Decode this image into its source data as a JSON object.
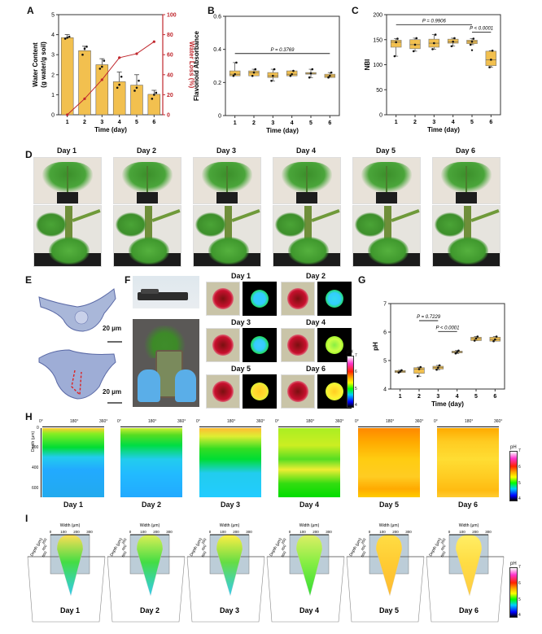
{
  "panels": {
    "A": "A",
    "B": "B",
    "C": "C",
    "D": "D",
    "E": "E",
    "F": "F",
    "G": "G",
    "H": "H",
    "I": "I"
  },
  "days": [
    "Day 1",
    "Day 2",
    "Day 3",
    "Day 4",
    "Day 5",
    "Day 6"
  ],
  "colors": {
    "bar": "#f2c04f",
    "bar_edge": "#555555",
    "loss_line": "#c0272d",
    "box": "#f2c04f"
  },
  "chart_data": [
    {
      "id": "A",
      "type": "bar",
      "title": "",
      "categories": [
        "1",
        "2",
        "3",
        "4",
        "5",
        "6"
      ],
      "xlabel": "Time (day)",
      "ylabel": "Water Content (g water/g soil)",
      "ylabel_lines": [
        "Water Content",
        "(g water/g soil)"
      ],
      "ylim": [
        0,
        5
      ],
      "yticks": [
        0,
        1,
        2,
        3,
        4,
        5
      ],
      "values": [
        3.85,
        3.2,
        2.5,
        1.65,
        1.48,
        1.02
      ],
      "errors": [
        0.15,
        0.22,
        0.3,
        0.48,
        0.52,
        0.2
      ],
      "points": [
        [
          3.8,
          3.85,
          3.9
        ],
        [
          3.0,
          3.3,
          3.4
        ],
        [
          2.3,
          2.4,
          2.7
        ],
        [
          1.35,
          1.5,
          1.9
        ],
        [
          1.2,
          1.35,
          1.7
        ],
        [
          0.8,
          1.0,
          1.1
        ]
      ],
      "secondary": {
        "type": "line",
        "ylabel": "Water Loss (%)",
        "ylim": [
          0,
          100
        ],
        "yticks": [
          0,
          20,
          40,
          60,
          80,
          100
        ],
        "values": [
          0,
          16,
          35,
          57,
          61,
          73
        ]
      }
    },
    {
      "id": "B",
      "type": "box",
      "categories": [
        "1",
        "2",
        "3",
        "4",
        "5",
        "6"
      ],
      "xlabel": "Time (day)",
      "ylabel": "Flavonoid Absorbance",
      "ylim": [
        0,
        0.6
      ],
      "yticks": [
        "0",
        "0.2",
        "0.4",
        "0.6"
      ],
      "ytick_values": [
        0,
        0.2,
        0.4,
        0.6
      ],
      "boxes": [
        {
          "min": 0.24,
          "q1": 0.24,
          "median": 0.25,
          "q3": 0.27,
          "max": 0.32
        },
        {
          "min": 0.24,
          "q1": 0.24,
          "median": 0.26,
          "q3": 0.27,
          "max": 0.28
        },
        {
          "min": 0.21,
          "q1": 0.23,
          "median": 0.24,
          "q3": 0.26,
          "max": 0.28
        },
        {
          "min": 0.24,
          "q1": 0.24,
          "median": 0.25,
          "q3": 0.27,
          "max": 0.27
        },
        {
          "min": 0.23,
          "q1": 0.25,
          "median": 0.255,
          "q3": 0.26,
          "max": 0.28
        },
        {
          "min": 0.23,
          "q1": 0.23,
          "median": 0.24,
          "q3": 0.25,
          "max": 0.26
        }
      ],
      "annotations": [
        {
          "text": "P = 0.3769",
          "from": 1,
          "to": 6,
          "y": 0.375
        }
      ]
    },
    {
      "id": "C",
      "type": "box",
      "categories": [
        "1",
        "2",
        "3",
        "4",
        "5",
        "6"
      ],
      "xlabel": "Time (day)",
      "ylabel": "NBI",
      "ylim": [
        0,
        200
      ],
      "yticks": [
        "0",
        "50",
        "100",
        "150",
        "200"
      ],
      "ytick_values": [
        0,
        50,
        100,
        150,
        200
      ],
      "boxes": [
        {
          "min": 117,
          "q1": 135,
          "median": 145,
          "q3": 149,
          "max": 152
        },
        {
          "min": 127,
          "q1": 132,
          "median": 140,
          "q3": 150,
          "max": 153
        },
        {
          "min": 131,
          "q1": 135,
          "median": 143,
          "q3": 151,
          "max": 160
        },
        {
          "min": 137,
          "q1": 143,
          "median": 146,
          "q3": 151,
          "max": 153
        },
        {
          "min": 140,
          "q1": 142,
          "median": 146,
          "q3": 149,
          "max": 152,
          "outlier": 129
        },
        {
          "min": 95,
          "q1": 98,
          "median": 110,
          "q3": 127,
          "max": 128
        }
      ],
      "annotations": [
        {
          "text": "P = 0.9906",
          "from": 1,
          "to": 5,
          "y": 180
        },
        {
          "text": "P < 0.0001",
          "from": 5,
          "to": 6,
          "y": 165
        }
      ]
    },
    {
      "id": "G",
      "type": "box",
      "categories": [
        "1",
        "2",
        "3",
        "4",
        "5",
        "6"
      ],
      "xlabel": "Time (day)",
      "ylabel": "pH",
      "ylim": [
        4,
        7
      ],
      "yticks": [
        "4",
        "5",
        "6",
        "7"
      ],
      "ytick_values": [
        4,
        5,
        6,
        7
      ],
      "boxes": [
        {
          "min": 4.58,
          "q1": 4.58,
          "median": 4.61,
          "q3": 4.65,
          "max": 4.66
        },
        {
          "min": 4.45,
          "q1": 4.55,
          "median": 4.7,
          "q3": 4.75,
          "max": 4.77
        },
        {
          "min": 4.68,
          "q1": 4.7,
          "median": 4.75,
          "q3": 4.8,
          "max": 4.83
        },
        {
          "min": 5.25,
          "q1": 5.27,
          "median": 5.3,
          "q3": 5.33,
          "max": 5.35
        },
        {
          "min": 5.7,
          "q1": 5.7,
          "median": 5.77,
          "q3": 5.82,
          "max": 5.84
        },
        {
          "min": 5.68,
          "q1": 5.68,
          "median": 5.74,
          "q3": 5.82,
          "max": 5.84
        }
      ],
      "annotations": [
        {
          "text": "P = 0.7229",
          "from": 2,
          "to": 3,
          "y": 6.4
        },
        {
          "text": "P < 0.0001",
          "from": 3,
          "to": 4,
          "y": 6.02
        }
      ]
    }
  ],
  "E": {
    "scale_bar_top": "20 μm",
    "scale_bar_bottom": "20 μm"
  },
  "F": {
    "ph_label": "pH",
    "colorbar_ticks": [
      "7",
      "6",
      "5",
      "4"
    ]
  },
  "H": {
    "xticks": [
      "0°",
      "180°",
      "360°"
    ],
    "ylabel": "Depth (μm)",
    "yticks": [
      "0",
      "200",
      "400",
      "600"
    ],
    "ph_label": "pH",
    "colorbar_ticks": [
      "7",
      "6",
      "5",
      "4"
    ],
    "mean_ph": [
      4.9,
      5.0,
      5.2,
      5.6,
      6.0,
      5.9
    ]
  },
  "I": {
    "width_label": "Width (μm)",
    "width_ticks": [
      "0",
      "100",
      "200",
      "300"
    ],
    "depth_label": "Depth (μm)",
    "depth_ticks": [
      "0",
      "200",
      "400",
      "600"
    ],
    "ph_label": "pH",
    "colorbar_ticks": [
      "7",
      "6",
      "5",
      "4"
    ]
  }
}
